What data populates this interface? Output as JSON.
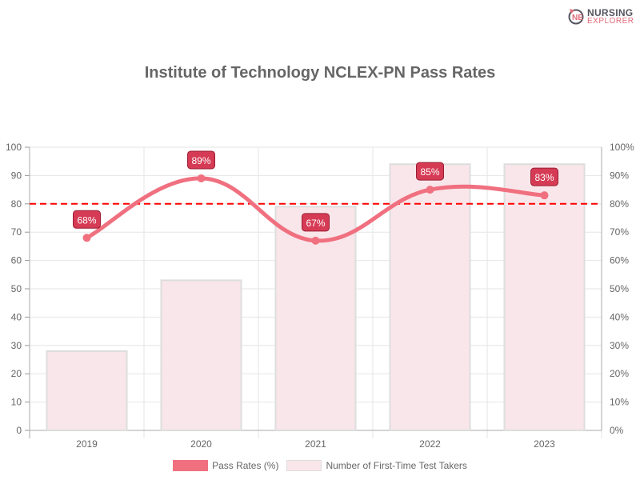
{
  "brand": {
    "line1": "NURSING",
    "line2": "EXPLORER"
  },
  "chart_data": {
    "type": "bar+line",
    "title": "Institute of Technology NCLEX-PN Pass Rates",
    "categories": [
      "2019",
      "2020",
      "2021",
      "2022",
      "2023"
    ],
    "series": [
      {
        "name": "Pass Rates (%)",
        "type": "line",
        "axis": "right",
        "values": [
          68,
          89,
          67,
          85,
          83
        ],
        "labels": [
          "68%",
          "89%",
          "67%",
          "85%",
          "83%"
        ],
        "color": "#f07080"
      },
      {
        "name": "Number of First-Time Test Takers",
        "type": "bar",
        "axis": "left",
        "values": [
          28,
          53,
          79,
          94,
          94
        ],
        "color": "#f9e6ea"
      }
    ],
    "reference_line": {
      "value": 80,
      "color": "#ff0000",
      "style": "dashed"
    },
    "left_axis": {
      "ylim": [
        0,
        100
      ],
      "ticks": [
        "0",
        "10",
        "20",
        "30",
        "40",
        "50",
        "60",
        "70",
        "80",
        "90",
        "100"
      ]
    },
    "right_axis": {
      "ylim": [
        0,
        100
      ],
      "ticks": [
        "0%",
        "10%",
        "20%",
        "30%",
        "40%",
        "50%",
        "60%",
        "70%",
        "80%",
        "90%",
        "100%"
      ]
    },
    "grid": true,
    "legend": "bottom"
  }
}
